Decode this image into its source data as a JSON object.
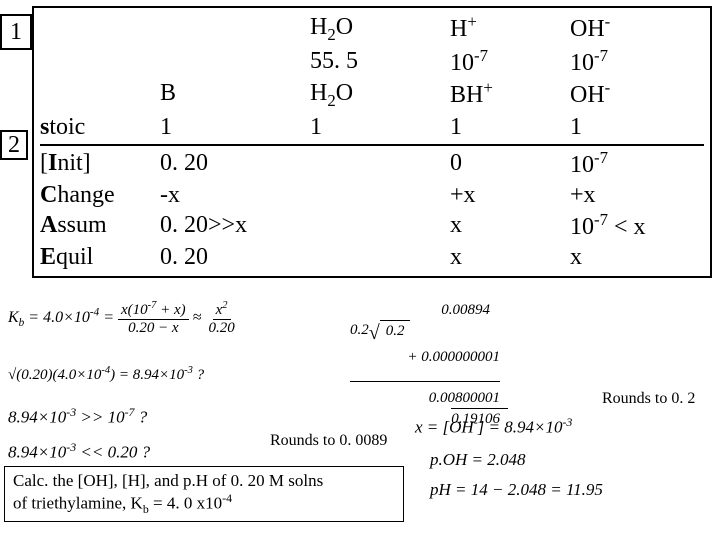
{
  "callouts": {
    "one": "1",
    "two": "2"
  },
  "table": {
    "header1": {
      "h2o": "H<sub>2</sub>O",
      "hplus": "H<sup>+</sup>",
      "oh": "OH<sup>-</sup>"
    },
    "header2": {
      "h2o": "55. 5",
      "hplus": "10<sup>-7</sup>",
      "oh": "10<sup>-7</sup>"
    },
    "header3": {
      "b": "B",
      "h2o": "H<sub>2</sub>O",
      "hplus": "BH<sup>+</sup>",
      "oh": "OH<sup>-</sup>"
    },
    "stoic": {
      "label": "<b>s</b>toic",
      "b": "1",
      "h2o": "1",
      "hplus": "1",
      "oh": "1"
    },
    "init": {
      "label": "[<b>I</b>nit]",
      "b": "0. 20",
      "h2o": "",
      "hplus": "0",
      "oh": "10<sup>-7</sup>"
    },
    "change": {
      "label": "<b>C</b>hange",
      "b": "-x",
      "h2o": "",
      "hplus": "+x",
      "oh": "+x"
    },
    "assum": {
      "label": "<b>A</b>ssum",
      "b": "0. 20>>x",
      "h2o": "",
      "hplus": "x",
      "oh": "10<sup>-7</sup> < x"
    },
    "equil": {
      "label": "<b>E</b>quil",
      "b": "0. 20",
      "h2o": "",
      "hplus": "x",
      "oh": "x"
    }
  },
  "equations": {
    "kb": "K<sub>b</sub> = 4.0×10<sup>-4</sup> = ",
    "kb_num": "x(10<sup>-7</sup> + x)",
    "kb_den": "0.20 − x",
    "kb_approx": " ≈ ",
    "kb_num2": "x<sup>2</sup>",
    "kb_den2": "0.20",
    "sqrt": "√(0.20)(4.0×10<sup>-4</sup>) = 8.94×10<sup>-3</sup> ?",
    "q1": "8.94×10<sup>-3</sup> >> 10<sup>-7</sup> ?",
    "q2": "8.94×10<sup>-3</sup> << 0.20 ?",
    "longdiv_top": "0.00894",
    "longdiv_divisor": "0.2",
    "longdiv_radicand": "0.2",
    "longdiv_l1": "+ 0.000000001",
    "longdiv_l2": "0.00800001",
    "longdiv_l3": "0.19106",
    "rounds02": "Rounds to 0. 2",
    "rounds0089": "Rounds to 0. 0089",
    "x_oh": "x = [OH<sup>-</sup>] = 8.94×10<sup>-3</sup>",
    "poh": "p.OH = 2.048",
    "ph": "pH = 14 − 2.048 = 11.95"
  },
  "footer": {
    "line1": "Calc. the [OH], [H], and p.H of 0. 20 M solns",
    "line2": "of  triethylamine, K<sub>b</sub> = 4. 0 x10<sup>-4</sup>"
  },
  "colors": {
    "border": "#000000",
    "bg": "#ffffff"
  }
}
